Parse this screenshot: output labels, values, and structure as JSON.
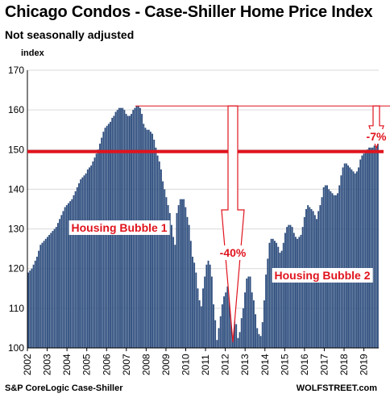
{
  "title": "Chicago Condos - Case-Shiller Home Price Index",
  "subtitle": "Not seasonally adjusted",
  "source": "S&P CoreLogic Case-Shiller",
  "brand": "WOLFSTREET.com",
  "chart_data": {
    "type": "bar",
    "ylabel": "index",
    "ylim": [
      100,
      170
    ],
    "yticks": [
      "100",
      "110",
      "120",
      "130",
      "140",
      "150",
      "160",
      "170"
    ],
    "xticks": [
      "2002",
      "2003",
      "2004",
      "2005",
      "2006",
      "2007",
      "2008",
      "2009",
      "2010",
      "2011",
      "2012",
      "2013",
      "2014",
      "2015",
      "2016",
      "2017",
      "2018",
      "2019"
    ],
    "x_start_year": 2002,
    "x_end_year": 2019.75,
    "grid": true,
    "bar_color": "#2E4E7E",
    "reference_line": {
      "value": 149.5,
      "color": "#E0141E"
    },
    "annotation_color": "#E0141E",
    "annotations": {
      "bubble1": "Housing Bubble 1",
      "bubble2": "Housing Bubble 2",
      "drop": "-40%",
      "current_drop": "-7%"
    },
    "values": [
      119,
      119.5,
      120,
      121,
      122,
      123,
      124.5,
      126,
      126.5,
      127,
      127.5,
      128,
      128.5,
      129,
      129.5,
      130,
      130.5,
      131.5,
      132.5,
      133.5,
      134.5,
      135.5,
      136,
      136.5,
      137,
      137.5,
      138.5,
      139.5,
      140.5,
      141.5,
      142.5,
      143,
      143.5,
      144,
      145,
      145.5,
      146,
      147,
      148,
      149,
      150,
      151.5,
      153,
      154.5,
      155.5,
      156,
      156.5,
      157,
      158,
      158.5,
      159.5,
      160,
      160.5,
      160.5,
      160.5,
      160,
      159,
      158.5,
      158.5,
      159,
      160,
      160.5,
      161,
      161,
      160.5,
      159,
      156.5,
      155.5,
      155,
      155,
      154.5,
      154,
      152.5,
      150.5,
      148.5,
      147,
      145,
      142,
      140,
      138,
      136,
      134,
      131,
      128,
      126,
      134,
      136,
      137.5,
      137.5,
      137.5,
      135.5,
      133,
      131,
      127,
      123,
      121.5,
      119,
      115,
      112,
      110.5,
      115,
      118,
      121,
      122,
      121,
      118,
      111,
      107,
      102,
      105,
      108,
      111,
      113,
      114,
      115.5,
      115.5,
      114.5,
      112,
      109,
      106,
      102.5,
      104,
      107.5,
      110,
      114,
      117.5,
      118,
      118,
      114,
      112,
      108.5,
      105,
      103.5,
      103,
      106.5,
      112,
      118.5,
      122.5,
      126.5,
      127.5,
      127.5,
      127,
      126.5,
      125.5,
      124,
      124.5,
      126.5,
      129,
      130.5,
      131,
      131,
      130.5,
      129,
      128,
      127.5,
      128,
      128.5,
      130.5,
      133,
      135,
      136,
      135.5,
      135,
      134.5,
      133.5,
      132.5,
      134.5,
      136,
      138,
      140.5,
      141,
      141,
      140,
      139.5,
      139,
      138.5,
      138.5,
      139,
      141,
      143.5,
      145.5,
      146.5,
      146.5,
      146,
      145.5,
      145,
      144.5,
      144,
      144.5,
      145.5,
      147.5,
      148.5,
      149,
      149.5,
      150,
      150.5,
      150.5,
      150.5,
      151,
      151.5,
      152
    ]
  }
}
